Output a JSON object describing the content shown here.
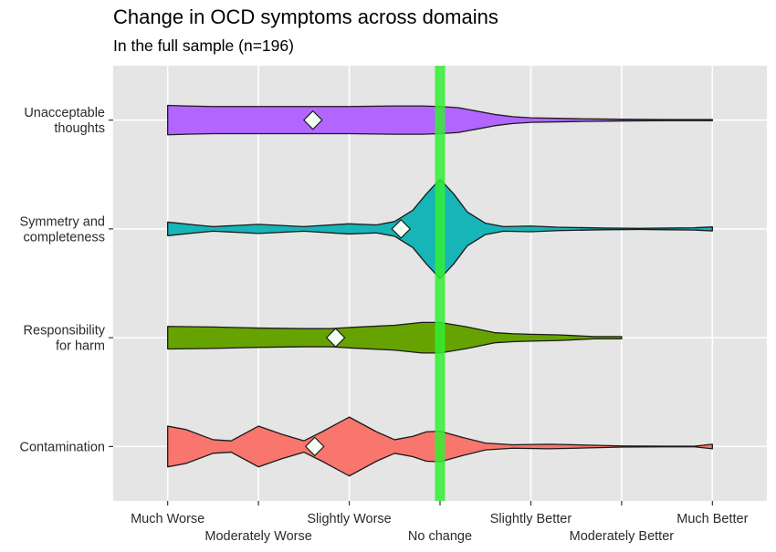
{
  "chart_data": {
    "type": "violin",
    "title": "Change in OCD symptoms across domains",
    "subtitle": "In the full sample (n=196)",
    "xlabel": "",
    "ylabel": "",
    "x_categories": [
      "Much Worse",
      "Moderately Worse",
      "Slightly Worse",
      "No change",
      "Slightly Better",
      "Moderately Better",
      "Much Better"
    ],
    "x_values": [
      -3,
      -2,
      -1,
      0,
      1,
      2,
      3
    ],
    "xlim": [
      -3.6,
      3.6
    ],
    "reference_line": {
      "x": 0,
      "label": "No change",
      "color": "#33ee33"
    },
    "grid": true,
    "legend": "none",
    "series": [
      {
        "category": [
          "Unacceptable",
          "thoughts"
        ],
        "color": "#b266ff",
        "mean": -1.4,
        "range": [
          -3,
          3
        ],
        "density": [
          [
            -3,
            0.26
          ],
          [
            -2.8,
            0.25
          ],
          [
            -2.5,
            0.24
          ],
          [
            -2,
            0.24
          ],
          [
            -1.5,
            0.24
          ],
          [
            -1,
            0.24
          ],
          [
            -0.5,
            0.25
          ],
          [
            -0.2,
            0.25
          ],
          [
            0,
            0.24
          ],
          [
            0.2,
            0.22
          ],
          [
            0.4,
            0.16
          ],
          [
            0.6,
            0.1
          ],
          [
            0.8,
            0.06
          ],
          [
            1,
            0.04
          ],
          [
            1.5,
            0.025
          ],
          [
            2,
            0.015
          ],
          [
            2.5,
            0.01
          ],
          [
            3,
            0.01
          ]
        ]
      },
      {
        "category": [
          "Symmetry and",
          "completeness"
        ],
        "color": "#17b4b8",
        "mean": -0.43,
        "range": [
          -3,
          3
        ],
        "density": [
          [
            -3,
            0.12
          ],
          [
            -2.7,
            0.07
          ],
          [
            -2.5,
            0.04
          ],
          [
            -2,
            0.08
          ],
          [
            -1.5,
            0.04
          ],
          [
            -1,
            0.09
          ],
          [
            -0.7,
            0.07
          ],
          [
            -0.5,
            0.13
          ],
          [
            -0.3,
            0.33
          ],
          [
            -0.15,
            0.62
          ],
          [
            0,
            0.88
          ],
          [
            0.15,
            0.62
          ],
          [
            0.3,
            0.3
          ],
          [
            0.5,
            0.1
          ],
          [
            0.7,
            0.04
          ],
          [
            1,
            0.05
          ],
          [
            1.3,
            0.03
          ],
          [
            1.8,
            0.015
          ],
          [
            2.2,
            0.01
          ],
          [
            2.5,
            0.015
          ],
          [
            2.8,
            0.02
          ],
          [
            3,
            0.035
          ]
        ]
      },
      {
        "category": [
          "Responsibility",
          "for harm"
        ],
        "color": "#66a300",
        "mean": -1.15,
        "range": [
          -3,
          2
        ],
        "density": [
          [
            -3,
            0.2
          ],
          [
            -2.5,
            0.19
          ],
          [
            -2,
            0.17
          ],
          [
            -1.5,
            0.16
          ],
          [
            -1.2,
            0.16
          ],
          [
            -1,
            0.18
          ],
          [
            -0.5,
            0.22
          ],
          [
            -0.2,
            0.27
          ],
          [
            0,
            0.27
          ],
          [
            0.3,
            0.19
          ],
          [
            0.6,
            0.09
          ],
          [
            0.8,
            0.07
          ],
          [
            1,
            0.06
          ],
          [
            1.3,
            0.05
          ],
          [
            1.7,
            0.02
          ],
          [
            2,
            0.02
          ]
        ]
      },
      {
        "category": [
          "Contamination"
        ],
        "color": "#f8766d",
        "mean": -1.38,
        "range": [
          -3,
          3
        ],
        "density": [
          [
            -3,
            0.36
          ],
          [
            -2.8,
            0.3
          ],
          [
            -2.5,
            0.12
          ],
          [
            -2.3,
            0.1
          ],
          [
            -2,
            0.36
          ],
          [
            -1.75,
            0.22
          ],
          [
            -1.5,
            0.1
          ],
          [
            -1.3,
            0.26
          ],
          [
            -1,
            0.52
          ],
          [
            -0.7,
            0.26
          ],
          [
            -0.5,
            0.12
          ],
          [
            -0.3,
            0.18
          ],
          [
            -0.15,
            0.26
          ],
          [
            0,
            0.27
          ],
          [
            0.25,
            0.16
          ],
          [
            0.5,
            0.06
          ],
          [
            0.8,
            0.03
          ],
          [
            1.2,
            0.04
          ],
          [
            1.5,
            0.03
          ],
          [
            2,
            0.01
          ],
          [
            2.5,
            0.005
          ],
          [
            2.8,
            0.005
          ],
          [
            3,
            0.04
          ]
        ]
      }
    ]
  }
}
